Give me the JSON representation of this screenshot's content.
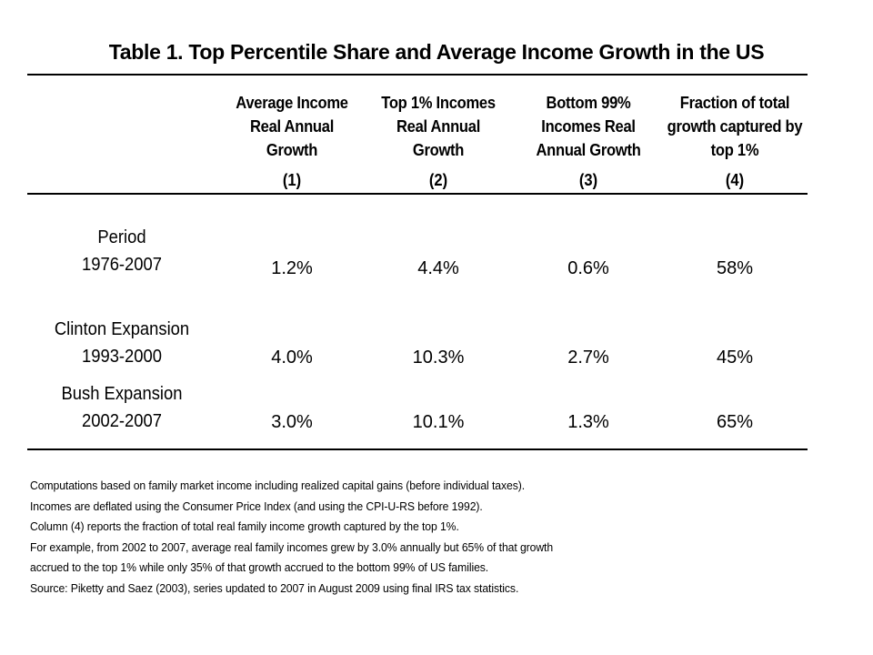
{
  "title": "Table 1. Top Percentile Share and Average Income Growth in the US",
  "columns": [
    {
      "header_lines": [
        "Average Income",
        "Real Annual",
        "Growth"
      ],
      "number": "(1)"
    },
    {
      "header_lines": [
        "Top 1% Incomes",
        "Real Annual",
        "Growth"
      ],
      "number": "(2)"
    },
    {
      "header_lines": [
        "Bottom 99%",
        "Incomes Real",
        "Annual Growth"
      ],
      "number": "(3)"
    },
    {
      "header_lines": [
        "Fraction of total",
        "growth captured by",
        "top 1%"
      ],
      "number": "(4)"
    }
  ],
  "rows": [
    {
      "label_lines": [
        "Period",
        "1976-2007"
      ],
      "values": [
        "1.2%",
        "4.4%",
        "0.6%",
        "58%"
      ]
    },
    {
      "label_lines": [
        "Clinton Expansion",
        "1993-2000"
      ],
      "values": [
        "4.0%",
        "10.3%",
        "2.7%",
        "45%"
      ]
    },
    {
      "label_lines": [
        "Bush Expansion",
        "2002-2007"
      ],
      "values": [
        "3.0%",
        "10.1%",
        "1.3%",
        "65%"
      ]
    }
  ],
  "notes": [
    "Computations based on family market income including realized capital gains (before individual taxes).",
    "Incomes are deflated using the Consumer Price Index (and using the CPI-U-RS before 1992).",
    "Column (4) reports the fraction of total real family income growth captured by the top 1%.",
    "For example, from 2002 to 2007, average real family incomes grew by 3.0% annually but 65% of that growth",
    "accrued to the top 1% while only 35% of that growth accrued to the bottom 99% of US families.",
    "Source: Piketty and Saez (2003), series updated to 2007 in August 2009 using final IRS tax statistics."
  ]
}
